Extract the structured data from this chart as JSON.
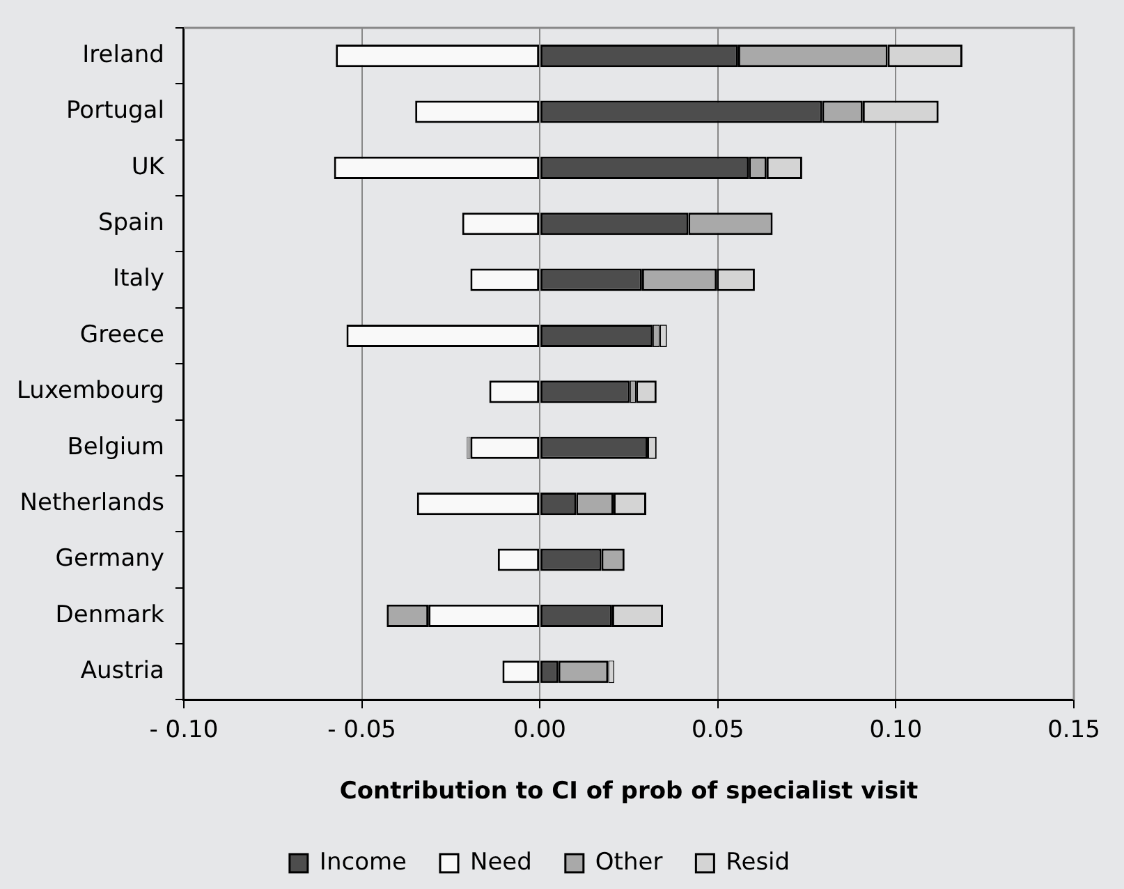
{
  "chart_data": {
    "type": "bar",
    "orientation": "horizontal",
    "stacked": true,
    "xlabel": "Contribution to CI of prob of specialist visit",
    "categories": [
      "Ireland",
      "Portugal",
      "UK",
      "Spain",
      "Italy",
      "Greece",
      "Luxembourg",
      "Belgium",
      "Netherlands",
      "Germany",
      "Denmark",
      "Austria"
    ],
    "series": [
      {
        "name": "Income",
        "color": "#4d4d4d",
        "values": [
          0.0557,
          0.0793,
          0.0587,
          0.0417,
          0.0287,
          0.0317,
          0.0253,
          0.0303,
          0.0102,
          0.0173,
          0.0203,
          0.0052
        ]
      },
      {
        "name": "Need",
        "color": "#f9f9f9",
        "values": [
          -0.0573,
          -0.035,
          -0.0578,
          -0.0218,
          -0.0195,
          -0.0543,
          -0.0142,
          -0.0195,
          -0.0345,
          -0.0118,
          -0.0313,
          -0.0105
        ]
      },
      {
        "name": "Other",
        "color": "#a9a9a9",
        "values": [
          0.042,
          0.0114,
          0.005,
          0.0237,
          0.021,
          0.002,
          0.0017,
          -0.001,
          0.0105,
          0.0065,
          -0.0117,
          0.014
        ]
      },
      {
        "name": "Resid",
        "color": "#d4d4d4",
        "values": [
          0.021,
          0.0213,
          0.01,
          0,
          0.0107,
          0.002,
          0.0058,
          0.0025,
          0.0092,
          0,
          0.0143,
          0.0017
        ]
      }
    ],
    "xlim": [
      -0.1,
      0.15
    ],
    "xticks": [
      {
        "value": -0.1,
        "label": "- 0.10"
      },
      {
        "value": -0.05,
        "label": "- 0.05"
      },
      {
        "value": 0,
        "label": "0.00"
      },
      {
        "value": 0.05,
        "label": "0.05"
      },
      {
        "value": 0.1,
        "label": "0.10"
      },
      {
        "value": 0.15,
        "label": "0.15"
      }
    ],
    "grid": "x",
    "legend": "bottom"
  }
}
